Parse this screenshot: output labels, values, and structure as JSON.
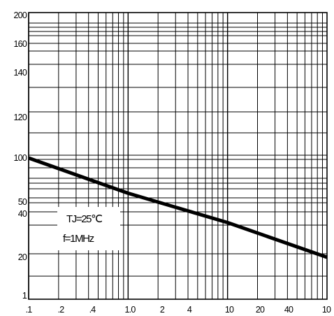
{
  "chart_data": {
    "type": "line",
    "title": "",
    "xlabel": "",
    "ylabel": "",
    "x_scale": "log",
    "xlim": [
      0.1,
      100
    ],
    "x_tick_labels": [
      ".1",
      ".2",
      ".4",
      "1.0",
      "2",
      "4",
      "10",
      "20",
      "40",
      "10"
    ],
    "y_tick_labels": [
      "200",
      "160",
      "140",
      "120",
      "100",
      "50",
      "40",
      "20",
      "1"
    ],
    "grid": true,
    "annotations": [
      "TJ=25℃",
      "f=1MHz"
    ],
    "series": [
      {
        "x": [
          0.1,
          1,
          10,
          100
        ],
        "y": [
          100,
          60,
          36,
          20
        ]
      }
    ],
    "colors": {
      "line": "#000000",
      "grid": "#000000",
      "background": "#ffffff"
    }
  }
}
